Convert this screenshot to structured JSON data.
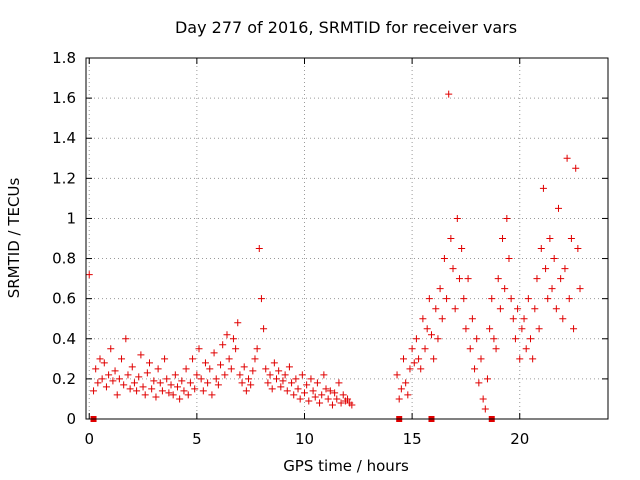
{
  "chart_data": {
    "type": "scatter",
    "title": "Day 277 of 2016, SRMTID for receiver vars",
    "xlabel": "GPS time / hours",
    "ylabel": "SRMTID / TECUs",
    "xlim": [
      -0.15,
      24.1
    ],
    "ylim": [
      0,
      1.8
    ],
    "xticks": [
      0,
      5,
      10,
      15,
      20
    ],
    "yticks": [
      0,
      0.2,
      0.4,
      0.6,
      0.8,
      1,
      1.2,
      1.4,
      1.6,
      1.8
    ],
    "ytick_labels": [
      "0",
      "0.2",
      "0.4",
      "0.6",
      "0.8",
      "1",
      "1.2",
      "1.4",
      "1.6",
      "1.8"
    ],
    "grid": true,
    "series": [
      {
        "name": "SRMTID",
        "marker": "plus",
        "color": "#e00000",
        "x": [
          0.0,
          0.2,
          0.3,
          0.4,
          0.5,
          0.6,
          0.7,
          0.8,
          0.9,
          1.0,
          1.1,
          1.2,
          1.3,
          1.4,
          1.5,
          1.6,
          1.7,
          1.8,
          1.9,
          2.0,
          2.1,
          2.2,
          2.3,
          2.4,
          2.5,
          2.6,
          2.7,
          2.8,
          2.9,
          3.0,
          3.1,
          3.2,
          3.3,
          3.4,
          3.5,
          3.6,
          3.7,
          3.8,
          3.9,
          4.0,
          4.1,
          4.2,
          4.3,
          4.4,
          4.5,
          4.6,
          4.7,
          4.8,
          4.9,
          5.0,
          5.1,
          5.2,
          5.3,
          5.4,
          5.5,
          5.6,
          5.7,
          5.8,
          5.9,
          6.0,
          6.1,
          6.2,
          6.3,
          6.4,
          6.5,
          6.6,
          6.7,
          6.8,
          6.9,
          7.0,
          7.1,
          7.2,
          7.3,
          7.4,
          7.5,
          7.6,
          7.7,
          7.8,
          7.9,
          8.0,
          8.1,
          8.2,
          8.3,
          8.4,
          8.5,
          8.6,
          8.7,
          8.8,
          8.9,
          9.0,
          9.1,
          9.2,
          9.3,
          9.4,
          9.5,
          9.6,
          9.7,
          9.8,
          9.9,
          10.0,
          10.1,
          10.2,
          10.3,
          10.4,
          10.5,
          10.6,
          10.7,
          10.8,
          10.9,
          11.0,
          11.1,
          11.2,
          11.3,
          11.4,
          11.5,
          11.6,
          11.7,
          11.8,
          11.9,
          12.0,
          12.1,
          12.2,
          14.3,
          14.4,
          14.5,
          14.6,
          14.7,
          14.8,
          14.9,
          15.0,
          15.1,
          15.2,
          15.3,
          15.4,
          15.5,
          15.6,
          15.7,
          15.8,
          15.9,
          16.0,
          16.1,
          16.2,
          16.3,
          16.4,
          16.5,
          16.6,
          16.7,
          16.8,
          16.9,
          17.0,
          17.1,
          17.2,
          17.3,
          17.4,
          17.5,
          17.6,
          17.7,
          17.8,
          17.9,
          18.0,
          18.1,
          18.2,
          18.3,
          18.4,
          18.5,
          18.6,
          18.7,
          18.8,
          18.9,
          19.0,
          19.1,
          19.2,
          19.3,
          19.4,
          19.5,
          19.6,
          19.7,
          19.8,
          19.9,
          20.0,
          20.1,
          20.2,
          20.3,
          20.4,
          20.5,
          20.6,
          20.7,
          20.8,
          20.9,
          21.0,
          21.1,
          21.2,
          21.3,
          21.4,
          21.5,
          21.6,
          21.7,
          21.8,
          21.9,
          22.0,
          22.1,
          22.2,
          22.3,
          22.4,
          22.5,
          22.6,
          22.7,
          22.8
        ],
        "y": [
          0.72,
          0.14,
          0.25,
          0.18,
          0.3,
          0.2,
          0.28,
          0.16,
          0.22,
          0.35,
          0.19,
          0.24,
          0.12,
          0.2,
          0.3,
          0.17,
          0.4,
          0.22,
          0.15,
          0.26,
          0.18,
          0.14,
          0.21,
          0.32,
          0.16,
          0.12,
          0.23,
          0.28,
          0.15,
          0.19,
          0.11,
          0.25,
          0.18,
          0.14,
          0.3,
          0.2,
          0.13,
          0.17,
          0.12,
          0.22,
          0.16,
          0.1,
          0.19,
          0.14,
          0.25,
          0.12,
          0.18,
          0.3,
          0.15,
          0.22,
          0.35,
          0.2,
          0.14,
          0.28,
          0.18,
          0.25,
          0.12,
          0.33,
          0.2,
          0.17,
          0.27,
          0.37,
          0.22,
          0.42,
          0.3,
          0.25,
          0.4,
          0.35,
          0.48,
          0.22,
          0.18,
          0.26,
          0.14,
          0.2,
          0.17,
          0.24,
          0.3,
          0.35,
          0.85,
          0.6,
          0.45,
          0.25,
          0.18,
          0.22,
          0.15,
          0.28,
          0.2,
          0.24,
          0.16,
          0.19,
          0.22,
          0.14,
          0.26,
          0.18,
          0.12,
          0.2,
          0.15,
          0.1,
          0.22,
          0.13,
          0.17,
          0.09,
          0.2,
          0.14,
          0.11,
          0.18,
          0.08,
          0.12,
          0.22,
          0.15,
          0.1,
          0.14,
          0.07,
          0.13,
          0.1,
          0.18,
          0.08,
          0.12,
          0.09,
          0.1,
          0.08,
          0.07,
          0.22,
          0.1,
          0.15,
          0.3,
          0.18,
          0.12,
          0.25,
          0.35,
          0.28,
          0.4,
          0.3,
          0.25,
          0.5,
          0.35,
          0.45,
          0.6,
          0.42,
          0.3,
          0.55,
          0.4,
          0.65,
          0.5,
          0.8,
          0.6,
          1.62,
          0.9,
          0.75,
          0.55,
          1.0,
          0.7,
          0.85,
          0.6,
          0.45,
          0.7,
          0.35,
          0.5,
          0.25,
          0.4,
          0.18,
          0.3,
          0.1,
          0.05,
          0.2,
          0.45,
          0.6,
          0.4,
          0.35,
          0.7,
          0.55,
          0.9,
          0.65,
          1.0,
          0.8,
          0.6,
          0.5,
          0.4,
          0.55,
          0.3,
          0.45,
          0.5,
          0.35,
          0.6,
          0.4,
          0.3,
          0.55,
          0.7,
          0.45,
          0.85,
          1.15,
          0.75,
          0.6,
          0.9,
          0.65,
          0.8,
          0.55,
          1.05,
          0.7,
          0.5,
          0.75,
          1.3,
          0.6,
          0.9,
          0.45,
          1.25,
          0.85,
          0.65
        ],
        "gap_markers_x": [
          0.2,
          14.4,
          15.9,
          18.7
        ]
      }
    ]
  }
}
